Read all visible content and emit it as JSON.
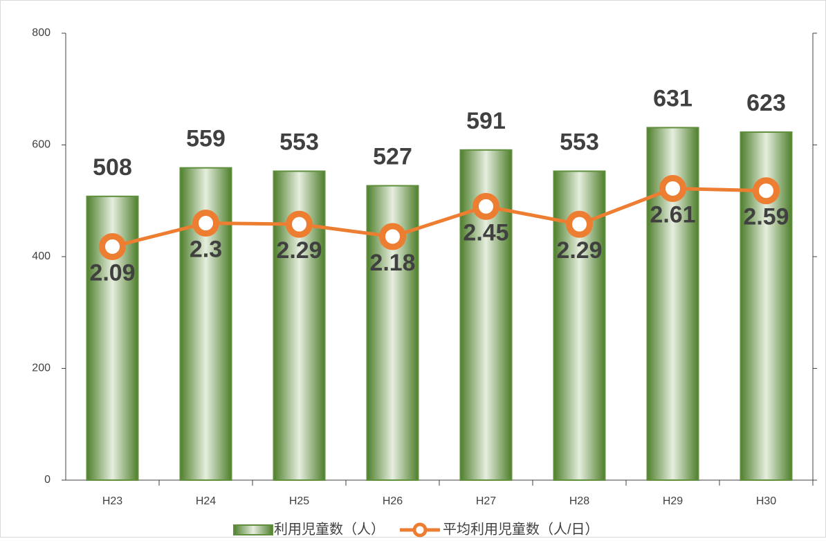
{
  "chart_data": {
    "type": "bar_line",
    "categories": [
      "H23",
      "H24",
      "H25",
      "H26",
      "H27",
      "H28",
      "H29",
      "H30"
    ],
    "series": [
      {
        "name": "利用児童数（人）",
        "color": "#5f8f3a",
        "type": "bar",
        "values": [
          508,
          559,
          553,
          527,
          591,
          553,
          631,
          623
        ]
      },
      {
        "name": "平均利用児童数（人/日）",
        "color": "#ed7d31",
        "type": "line",
        "axis": "y2",
        "values": [
          2.09,
          2.3,
          2.29,
          2.18,
          2.45,
          2.29,
          2.61,
          2.59
        ]
      }
    ],
    "ylim": [
      0,
      800
    ],
    "yticks": [
      0,
      200,
      400,
      600,
      800
    ],
    "y2lim": [
      0,
      4
    ],
    "y2ticks": [
      0,
      1,
      2,
      3,
      4
    ],
    "legend": "bottom"
  }
}
